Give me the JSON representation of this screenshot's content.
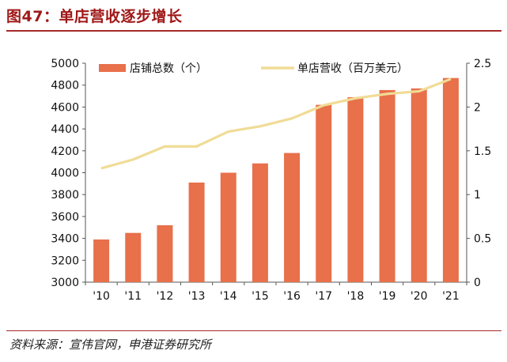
{
  "header": {
    "title": "图47：单店营收逐步增长"
  },
  "footer": {
    "source": "资料来源：宣伟官网，申港证券研究所"
  },
  "colors": {
    "bar": "#e8704a",
    "line": "#f0dc96",
    "axis": "#555555",
    "title": "#a01818"
  },
  "chart_data": {
    "type": "bar",
    "categories": [
      "'10",
      "'11",
      "'12",
      "'13",
      "'14",
      "'15",
      "'16",
      "'17",
      "'18",
      "'19",
      "'20",
      "'21"
    ],
    "series": [
      {
        "name": "店铺总数（个）",
        "type": "bar",
        "axis": "left",
        "values": [
          3390,
          3450,
          3520,
          3910,
          4000,
          4085,
          4180,
          4620,
          4690,
          4755,
          4770,
          4865
        ]
      },
      {
        "name": "单店营收（百万美元）",
        "type": "line",
        "axis": "right",
        "values": [
          1.3,
          1.4,
          1.55,
          1.55,
          1.72,
          1.78,
          1.87,
          2.02,
          2.1,
          2.15,
          2.18,
          2.32
        ]
      }
    ],
    "y_left": {
      "min": 3000,
      "max": 5000,
      "ticks": [
        3000,
        3200,
        3400,
        3600,
        3800,
        4000,
        4200,
        4400,
        4600,
        4800,
        5000
      ]
    },
    "y_right": {
      "min": 0,
      "max": 2.5,
      "ticks": [
        "0",
        "0.5",
        "1",
        "1.5",
        "2",
        "2.5"
      ]
    },
    "legend": "top",
    "grid": false
  }
}
